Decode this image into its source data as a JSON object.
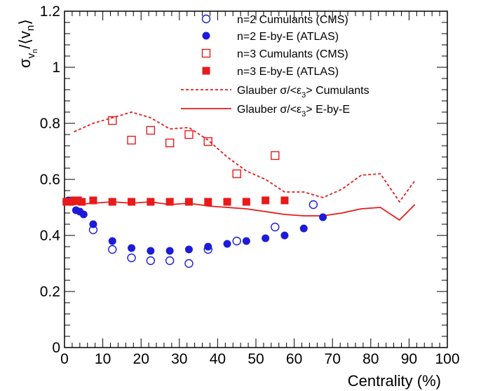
{
  "chart_data": {
    "type": "scatter",
    "xlabel": "Centrality (%)",
    "ylabel_sigma": "σ",
    "ylabel_sub": "v",
    "ylabel_subsub": "n",
    "ylabel_rest": "/⟨v",
    "ylabel_close": "⟩",
    "xlim": [
      0,
      100
    ],
    "ylim": [
      0,
      1.2
    ],
    "xticks": [
      0,
      10,
      20,
      30,
      40,
      50,
      60,
      70,
      80,
      90,
      100
    ],
    "xtick_labels": [
      "0",
      "10",
      "20",
      "30",
      "40",
      "50",
      "60",
      "70",
      "80",
      "90",
      "100"
    ],
    "yticks": [
      0,
      0.2,
      0.4,
      0.6,
      0.8,
      1.0,
      1.2
    ],
    "ytick_labels": [
      "0",
      "0.2",
      "0.4",
      "0.6",
      "0.8",
      "1",
      "1.2"
    ],
    "grid": false,
    "legend_position": "top-right",
    "colors": {
      "n2": "#1c1cd8",
      "n3": "#e81a1a"
    },
    "series": [
      {
        "name": "n=2 Cumulants (CMS)",
        "kind": "marker",
        "marker": "circle-open",
        "color": "#1c1cd8",
        "x": [
          7.5,
          12.5,
          17.5,
          22.5,
          27.5,
          32.5,
          37.5,
          45.0,
          55.0,
          65.0
        ],
        "y": [
          0.42,
          0.35,
          0.32,
          0.31,
          0.31,
          0.3,
          0.35,
          0.38,
          0.43,
          0.51
        ]
      },
      {
        "name": "n=2 E-by-E (ATLAS)",
        "kind": "marker",
        "marker": "circle-filled",
        "color": "#1c1cd8",
        "x": [
          1.0,
          2.0,
          3.0,
          4.0,
          5.0,
          7.5,
          12.5,
          17.5,
          22.5,
          27.5,
          32.5,
          37.5,
          42.5,
          47.5,
          52.5,
          57.5,
          62.5,
          67.5
        ],
        "y": [
          0.525,
          0.52,
          0.49,
          0.485,
          0.475,
          0.44,
          0.38,
          0.355,
          0.345,
          0.345,
          0.35,
          0.36,
          0.37,
          0.38,
          0.39,
          0.4,
          0.425,
          0.465
        ]
      },
      {
        "name": "n=3 Cumulants (CMS)",
        "kind": "marker",
        "marker": "square-open",
        "color": "#e81a1a",
        "x": [
          12.5,
          17.5,
          22.5,
          27.5,
          32.5,
          37.5,
          45.0,
          55.0
        ],
        "y": [
          0.81,
          0.74,
          0.775,
          0.73,
          0.76,
          0.735,
          0.62,
          0.685
        ]
      },
      {
        "name": "n=3 E-by-E (ATLAS)",
        "kind": "marker",
        "marker": "square-filled",
        "color": "#e81a1a",
        "x": [
          0.5,
          1.5,
          2.5,
          3.5,
          4.5,
          7.5,
          12.5,
          17.5,
          22.5,
          27.5,
          32.5,
          37.5,
          42.5,
          47.5,
          52.5,
          57.5
        ],
        "y": [
          0.52,
          0.52,
          0.525,
          0.525,
          0.52,
          0.525,
          0.52,
          0.52,
          0.52,
          0.52,
          0.52,
          0.52,
          0.52,
          0.52,
          0.525,
          0.525
        ]
      },
      {
        "name": "Glauber σ/<ε₃> Cumulants",
        "kind": "line",
        "dash": true,
        "color": "#e81a1a",
        "x": [
          2.5,
          7.5,
          12.5,
          17.5,
          22.5,
          27.5,
          32.5,
          37.5,
          42.5,
          47.5,
          52.5,
          57.5,
          62.5,
          67.5,
          72.5,
          77.5,
          82.5,
          87.5,
          91.5
        ],
        "y": [
          0.77,
          0.8,
          0.82,
          0.84,
          0.82,
          0.78,
          0.785,
          0.74,
          0.68,
          0.63,
          0.6,
          0.555,
          0.555,
          0.535,
          0.565,
          0.615,
          0.62,
          0.52,
          0.595
        ]
      },
      {
        "name": "Glauber σ/<ε₃> E-by-E",
        "kind": "line",
        "dash": false,
        "color": "#e81a1a",
        "x": [
          2.5,
          7.5,
          12.5,
          17.5,
          22.5,
          27.5,
          32.5,
          37.5,
          42.5,
          47.5,
          52.5,
          57.5,
          62.5,
          67.5,
          72.5,
          77.5,
          82.5,
          87.5,
          91.5
        ],
        "y": [
          0.51,
          0.515,
          0.52,
          0.515,
          0.52,
          0.51,
          0.515,
          0.505,
          0.5,
          0.495,
          0.485,
          0.475,
          0.47,
          0.47,
          0.48,
          0.495,
          0.5,
          0.455,
          0.51
        ]
      }
    ]
  },
  "legend": [
    {
      "label_pre": "n=2 Cumulants (CMS)",
      "label_sub": "",
      "label_post": ""
    },
    {
      "label_pre": "n=2 E-by-E (ATLAS)",
      "label_sub": "",
      "label_post": ""
    },
    {
      "label_pre": "n=3 Cumulants (CMS)",
      "label_sub": "",
      "label_post": ""
    },
    {
      "label_pre": "n=3 E-by-E (ATLAS)",
      "label_sub": "",
      "label_post": ""
    },
    {
      "label_pre": "Glauber σ/<ε",
      "label_sub": "3",
      "label_post": "> Cumulants"
    },
    {
      "label_pre": "Glauber σ/<ε",
      "label_sub": "3",
      "label_post": "> E-by-E"
    }
  ]
}
